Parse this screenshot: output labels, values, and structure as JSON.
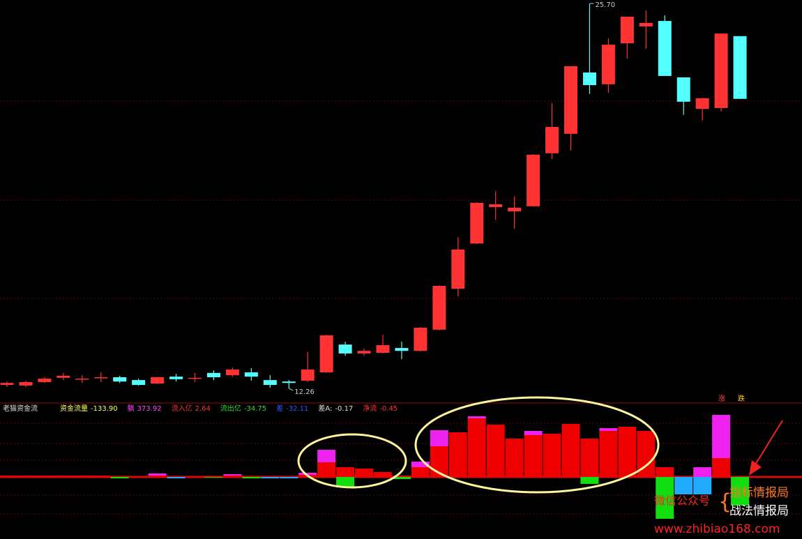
{
  "chart_data": [
    {
      "type": "candlestick",
      "up_color": "#ff3333",
      "down_color": "#54ffff",
      "open": [
        12.38,
        12.36,
        12.48,
        12.63,
        12.59,
        12.64,
        12.65,
        12.55,
        12.43,
        12.67,
        12.62,
        12.8,
        12.72,
        12.82,
        12.55,
        12.5,
        12.53,
        12.82,
        13.79,
        13.48,
        13.5,
        13.67,
        13.57,
        14.31,
        15.74,
        17.32,
        18.59,
        18.44,
        18.62,
        20.47,
        21.15,
        23.29,
        22.88,
        24.31,
        24.9,
        25.09,
        23.12,
        22.02,
        22.05,
        24.56
      ],
      "high": [
        12.5,
        12.53,
        12.65,
        12.8,
        12.72,
        12.82,
        12.7,
        12.6,
        12.67,
        12.77,
        12.8,
        12.89,
        12.99,
        12.97,
        12.72,
        12.55,
        13.53,
        14.13,
        13.89,
        13.65,
        14.13,
        13.89,
        14.4,
        15.86,
        17.54,
        18.76,
        19.15,
        18.96,
        20.44,
        22.22,
        23.51,
        25.7,
        24.48,
        25.24,
        25.46,
        25.29,
        23.12,
        22.41,
        24.65,
        24.56
      ],
      "low": [
        12.31,
        12.31,
        12.45,
        12.55,
        12.45,
        12.48,
        12.45,
        12.36,
        12.41,
        12.5,
        12.48,
        12.55,
        12.67,
        12.53,
        12.28,
        12.26,
        12.48,
        12.8,
        13.4,
        13.4,
        13.48,
        13.28,
        13.55,
        14.29,
        15.47,
        17.3,
        18.15,
        17.84,
        18.6,
        20.27,
        20.56,
        22.54,
        22.58,
        23.78,
        24.12,
        23.17,
        21.81,
        21.61,
        21.93,
        22.37
      ],
      "close": [
        12.45,
        12.48,
        12.6,
        12.7,
        12.6,
        12.65,
        12.5,
        12.38,
        12.65,
        12.58,
        12.63,
        12.65,
        12.92,
        12.67,
        12.38,
        12.45,
        12.92,
        14.11,
        13.48,
        13.57,
        13.77,
        13.57,
        14.38,
        15.84,
        17.11,
        18.74,
        18.69,
        18.57,
        20.42,
        21.39,
        23.51,
        22.85,
        24.26,
        25.24,
        25.02,
        23.17,
        22.27,
        22.39,
        24.65,
        22.37
      ],
      "annotations": [
        {
          "value": 25.7,
          "label": "25.70"
        },
        {
          "value": 12.26,
          "label": "12.26"
        }
      ],
      "corner_labels": [
        "涨",
        "跌"
      ]
    },
    {
      "type": "bar",
      "title": "老猫资金流",
      "indicators": [
        {
          "label": "资金流量",
          "value": "-133.90",
          "color": "#ffff66"
        },
        {
          "label": "飘",
          "value": "373.92",
          "color": "#ff44ff"
        },
        {
          "label": "流入亿",
          "value": "2.64",
          "color": "#ff3333"
        },
        {
          "label": "流出亿",
          "value": "-34.75",
          "color": "#33dd33"
        },
        {
          "label": "差",
          "value": "-32.11",
          "color": "#3355ff"
        },
        {
          "label": "差A:",
          "value": "-0.17",
          "color": "#dddddd"
        },
        {
          "label": "净流",
          "value": "-0.45",
          "color": "#ff3333"
        }
      ],
      "series": [
        {
          "color": "#ee0000",
          "values": [
            2,
            2,
            2,
            2,
            2,
            2,
            1,
            1,
            2,
            1,
            1,
            1,
            2,
            1,
            1,
            1,
            3,
            21,
            14,
            12,
            7,
            2,
            14,
            44,
            64,
            84,
            75,
            55,
            60,
            62,
            76,
            55,
            66,
            72,
            66,
            14,
            0,
            0,
            27,
            0
          ]
        },
        {
          "color": "#ee22ee",
          "values": [
            0,
            0,
            0,
            0,
            0,
            0,
            0,
            0,
            3,
            0,
            0,
            0,
            2,
            0,
            0,
            0,
            3,
            18,
            0,
            0,
            0,
            0,
            8,
            23,
            0,
            3,
            0,
            0,
            6,
            0,
            0,
            0,
            4,
            0,
            0,
            0,
            0,
            14,
            62,
            0
          ]
        },
        {
          "color": "#11dd11",
          "values": [
            0,
            0,
            0,
            0,
            0,
            0,
            -2,
            0,
            0,
            0,
            0,
            -1,
            0,
            -2,
            0,
            0,
            0,
            0,
            -15,
            0,
            0,
            -3,
            0,
            0,
            0,
            0,
            0,
            0,
            0,
            0,
            0,
            -10,
            0,
            0,
            0,
            -60,
            0,
            0,
            0,
            -41
          ]
        },
        {
          "color": "#22aaff",
          "values": [
            0,
            0,
            0,
            0,
            0,
            0,
            0,
            0,
            0,
            -2,
            0,
            0,
            0,
            0,
            -2,
            -2,
            0,
            0,
            0,
            0,
            0,
            0,
            0,
            0,
            0,
            0,
            0,
            0,
            0,
            0,
            0,
            0,
            0,
            0,
            0,
            0,
            -25,
            -25,
            0,
            0
          ]
        }
      ]
    }
  ],
  "watermark": {
    "wechat": "微信公众号",
    "accounts": [
      "指标情报局",
      "战法情报局"
    ],
    "url": "www.zhibiao168.com"
  }
}
